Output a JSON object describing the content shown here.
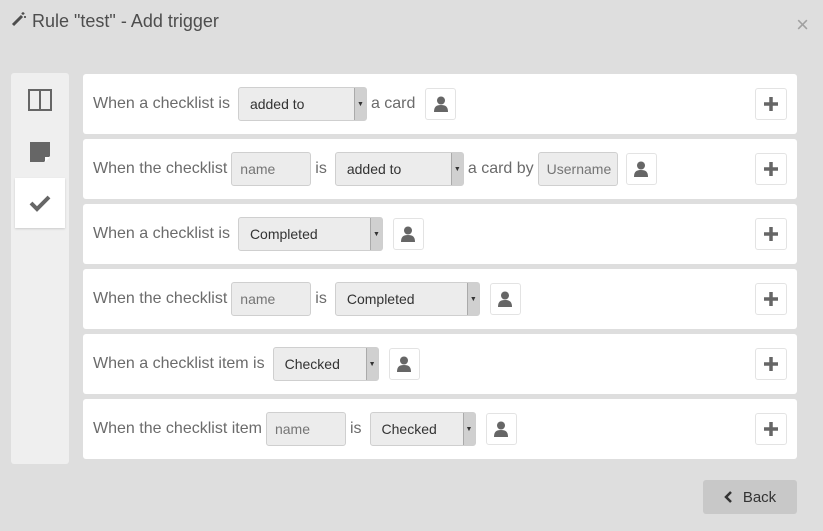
{
  "dialog": {
    "title": "Rule \"test\" - Add trigger",
    "close_label": "×",
    "back_label": "Back"
  },
  "sidebar": {
    "items": [
      {
        "icon": "columns-icon"
      },
      {
        "icon": "card-icon"
      },
      {
        "icon": "check-icon",
        "active": true
      }
    ]
  },
  "rows": [
    {
      "t1": "When a checklist is",
      "select": "added to",
      "t2": "a card"
    },
    {
      "t1": "When the checklist",
      "name_placeholder": "name",
      "t2": "is",
      "select": "added to",
      "t3": "a card by",
      "user_placeholder": "Username"
    },
    {
      "t1": "When a checklist is",
      "select": "Completed"
    },
    {
      "t1": "When the checklist",
      "name_placeholder": "name",
      "t2": "is",
      "select": "Completed"
    },
    {
      "t1": "When a checklist item is",
      "select": "Checked"
    },
    {
      "t1": "When the checklist item",
      "name_placeholder": "name",
      "t2": "is",
      "select": "Checked"
    }
  ]
}
